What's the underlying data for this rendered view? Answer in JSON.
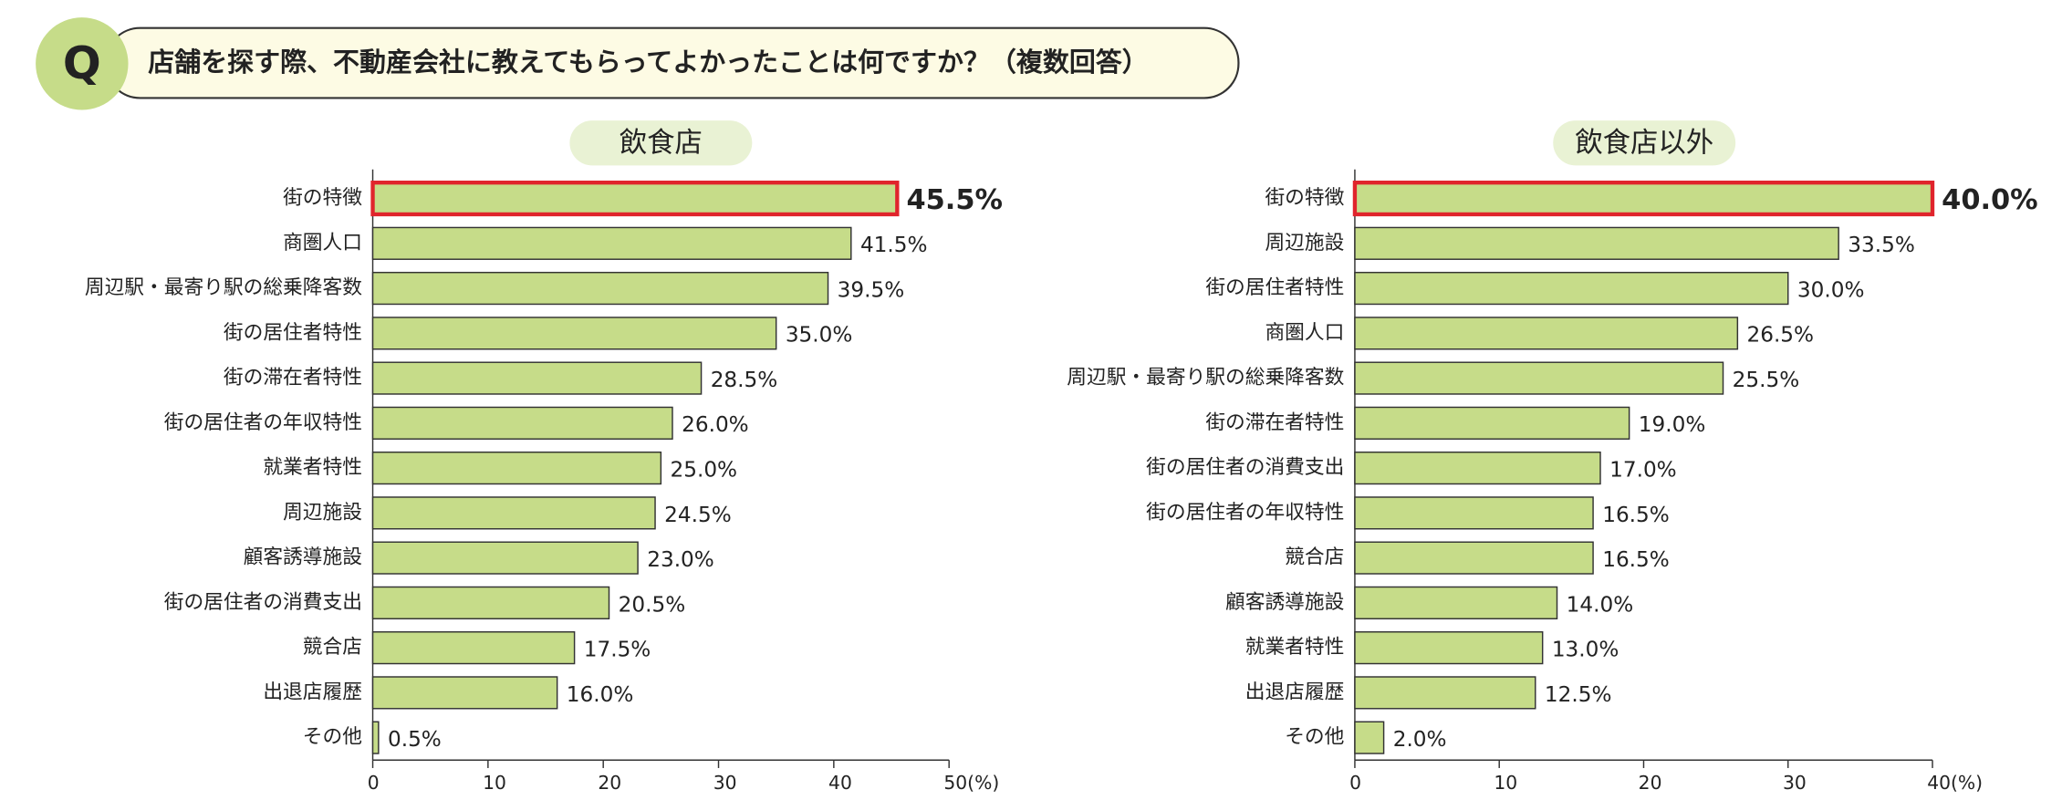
{
  "question": {
    "badge": "Q",
    "text": "店舗を探す際、不動産会社に教えてもらってよかったことは何ですか？（複数回答）"
  },
  "chart_data": [
    {
      "type": "bar",
      "orientation": "horizontal",
      "title": "飲食店",
      "categories": [
        "街の特徴",
        "商圏人口",
        "周辺駅・最寄り駅の総乗降客数",
        "街の居住者特性",
        "街の滞在者特性",
        "街の居住者の年収特性",
        "就業者特性",
        "周辺施設",
        "顧客誘導施設",
        "街の居住者の消費支出",
        "競合店",
        "出退店履歴",
        "その他"
      ],
      "values": [
        45.5,
        41.5,
        39.5,
        35.0,
        28.5,
        26.0,
        25.0,
        24.5,
        23.0,
        20.5,
        17.5,
        16.0,
        0.5
      ],
      "value_labels": [
        "45.5%",
        "41.5%",
        "39.5%",
        "35.0%",
        "28.5%",
        "26.0%",
        "25.0%",
        "24.5%",
        "23.0%",
        "20.5%",
        "17.5%",
        "16.0%",
        "0.5%"
      ],
      "color": "#c6dc89",
      "highlight_index": 0,
      "highlight_color": "#e0242c",
      "xlim": [
        0,
        50
      ],
      "xticks": [
        0,
        10,
        20,
        30,
        40,
        {
          "value": 50,
          "label": "50(%)"
        }
      ]
    },
    {
      "type": "bar",
      "orientation": "horizontal",
      "title": "飲食店以外",
      "categories": [
        "街の特徴",
        "周辺施設",
        "街の居住者特性",
        "商圏人口",
        "周辺駅・最寄り駅の総乗降客数",
        "街の滞在者特性",
        "街の居住者の消費支出",
        "街の居住者の年収特性",
        "競合店",
        "顧客誘導施設",
        "就業者特性",
        "出退店履歴",
        "その他"
      ],
      "values": [
        40.0,
        33.5,
        30.0,
        26.5,
        25.5,
        19.0,
        17.0,
        16.5,
        16.5,
        14.0,
        13.0,
        12.5,
        2.0
      ],
      "value_labels": [
        "40.0%",
        "33.5%",
        "30.0%",
        "26.5%",
        "25.5%",
        "19.0%",
        "17.0%",
        "16.5%",
        "16.5%",
        "14.0%",
        "13.0%",
        "12.5%",
        "2.0%"
      ],
      "color": "#c6dc89",
      "highlight_index": 0,
      "highlight_color": "#e0242c",
      "xlim": [
        0,
        40
      ],
      "xticks": [
        0,
        10,
        20,
        30,
        {
          "value": 40,
          "label": "40(%)"
        }
      ]
    }
  ]
}
